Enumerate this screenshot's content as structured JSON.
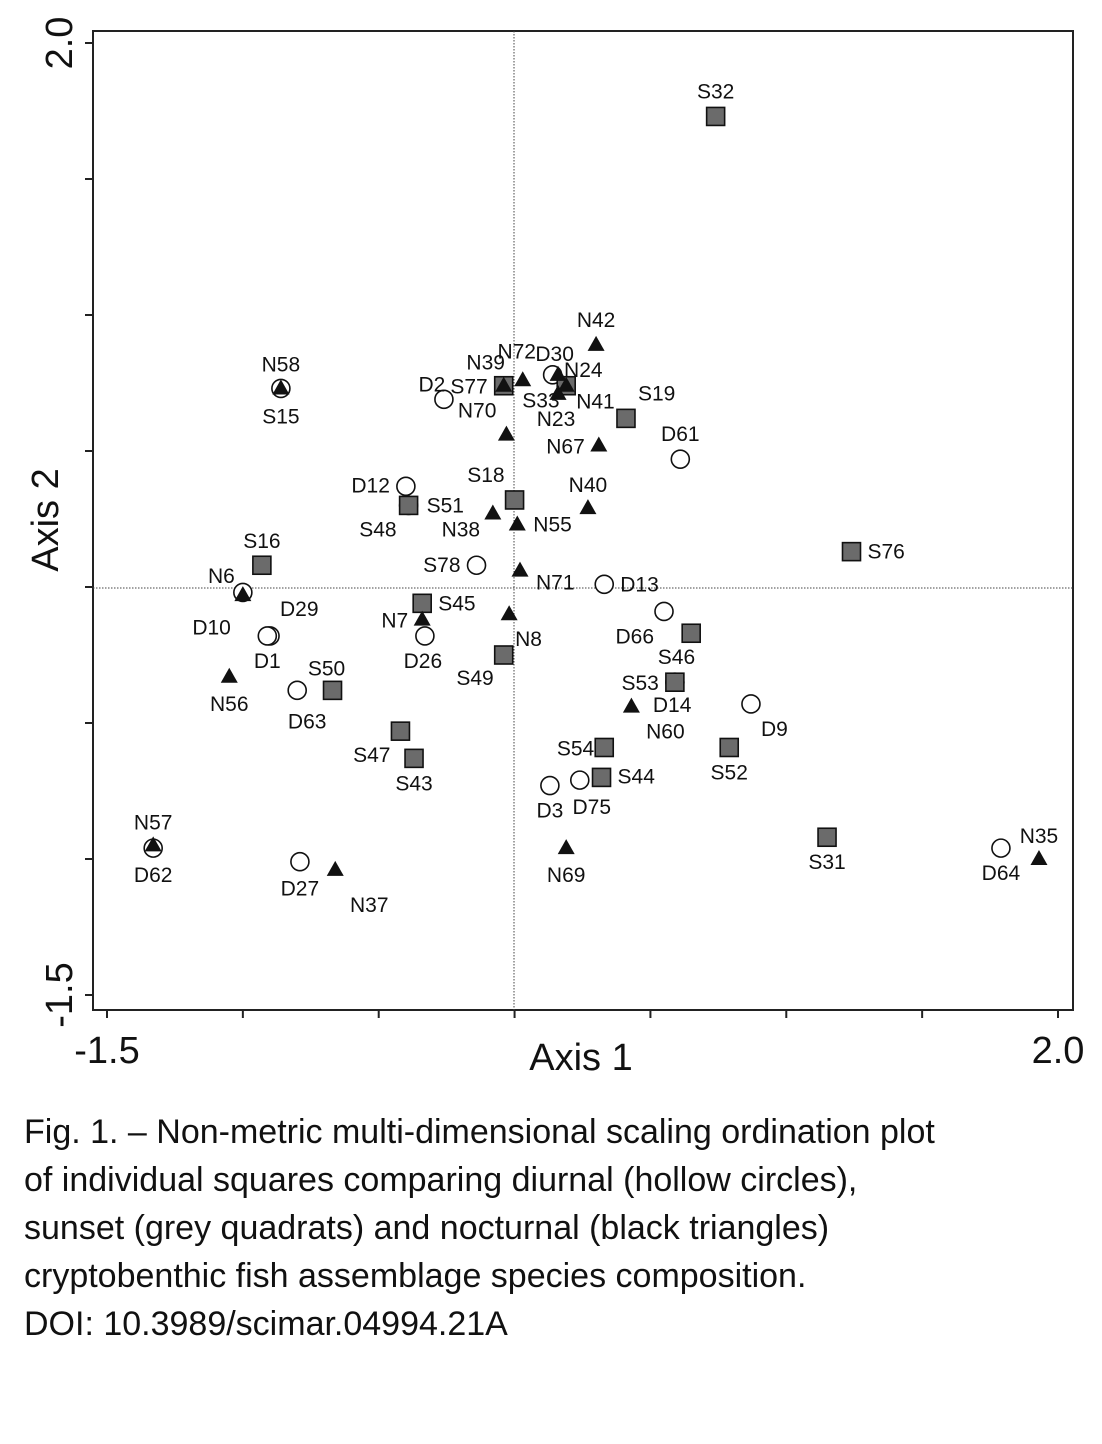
{
  "chart_data": {
    "type": "scatter",
    "title": "",
    "xlabel": "Axis 1",
    "ylabel": "Axis 2",
    "xlim": [
      -1.5,
      2.0
    ],
    "ylim": [
      -1.5,
      2.0
    ],
    "x_tick_labels": [
      {
        "value": -1.5,
        "label": "-1.5"
      },
      {
        "value": 2.0,
        "label": "2.0"
      }
    ],
    "y_tick_labels": [
      {
        "value": 2.0,
        "label": "2.0"
      },
      {
        "value": -1.5,
        "label": "-1.5"
      }
    ],
    "x_ticks": [
      -1.5,
      -1.0,
      -0.5,
      0.0,
      0.5,
      1.0,
      1.5,
      2.0
    ],
    "y_ticks": [
      -1.5,
      -1.0,
      -0.5,
      0.0,
      0.5,
      1.0,
      1.5,
      2.0
    ],
    "reference_lines": {
      "x": 0,
      "y": 0
    },
    "grid": false,
    "legend": "none",
    "colors": {
      "diurnal": "#ffffff",
      "sunset": "#6b6b6b",
      "nocturnal": "#111111"
    },
    "series": [
      {
        "marker": "circle",
        "points": [
          {
            "label": "D2",
            "x": -0.26,
            "y": 0.69
          },
          {
            "label": "D30",
            "x": 0.14,
            "y": 0.78
          },
          {
            "label": "D61",
            "x": 0.61,
            "y": 0.47
          },
          {
            "label": "D12",
            "x": -0.4,
            "y": 0.37
          },
          {
            "label": "D13",
            "x": 0.33,
            "y": 0.01
          },
          {
            "label": "D10",
            "x": -1.0,
            "y": -0.02
          },
          {
            "label": "D29",
            "x": -0.9,
            "y": -0.18
          },
          {
            "label": "D1",
            "x": -0.91,
            "y": -0.18
          },
          {
            "label": "D26",
            "x": -0.33,
            "y": -0.18
          },
          {
            "label": "D66",
            "x": 0.55,
            "y": -0.09
          },
          {
            "label": "D63",
            "x": -0.8,
            "y": -0.38
          },
          {
            "label": "D14",
            "x": 0.59,
            "y": -0.35
          },
          {
            "label": "D9",
            "x": 0.87,
            "y": -0.43
          },
          {
            "label": "D3",
            "x": 0.13,
            "y": -0.73
          },
          {
            "label": "D75",
            "x": 0.24,
            "y": -0.71
          },
          {
            "label": "D62",
            "x": -1.33,
            "y": -0.96
          },
          {
            "label": "D27",
            "x": -0.79,
            "y": -1.01
          },
          {
            "label": "D64",
            "x": 1.79,
            "y": -0.96
          },
          {
            "label": "S15",
            "x": -0.86,
            "y": 0.73
          },
          {
            "label": "S48",
            "x": -0.39,
            "y": 0.3
          },
          {
            "label": "S78",
            "x": -0.14,
            "y": 0.08
          }
        ]
      },
      {
        "marker": "square",
        "points": [
          {
            "label": "S32",
            "x": 0.74,
            "y": 1.73
          },
          {
            "label": "S77",
            "x": -0.04,
            "y": 0.74
          },
          {
            "label": "S33",
            "x": 0.19,
            "y": 0.74
          },
          {
            "label": "S19",
            "x": 0.41,
            "y": 0.62
          },
          {
            "label": "S18",
            "x": 0.0,
            "y": 0.32
          },
          {
            "label": "S51",
            "x": -0.39,
            "y": 0.3
          },
          {
            "label": "S76",
            "x": 1.24,
            "y": 0.13
          },
          {
            "label": "S16",
            "x": -0.93,
            "y": 0.08
          },
          {
            "label": "S45",
            "x": -0.34,
            "y": -0.06
          },
          {
            "label": "S46",
            "x": 0.65,
            "y": -0.17
          },
          {
            "label": "S49",
            "x": -0.04,
            "y": -0.25
          },
          {
            "label": "S53",
            "x": 0.59,
            "y": -0.35
          },
          {
            "label": "S50",
            "x": -0.67,
            "y": -0.38
          },
          {
            "label": "S47",
            "x": -0.42,
            "y": -0.53
          },
          {
            "label": "S43",
            "x": -0.37,
            "y": -0.63
          },
          {
            "label": "S54",
            "x": 0.33,
            "y": -0.59
          },
          {
            "label": "S44",
            "x": 0.32,
            "y": -0.7
          },
          {
            "label": "S52",
            "x": 0.79,
            "y": -0.59
          },
          {
            "label": "S31",
            "x": 1.15,
            "y": -0.92
          }
        ]
      },
      {
        "marker": "triangle",
        "points": [
          {
            "label": "N42",
            "x": 0.3,
            "y": 0.89
          },
          {
            "label": "N72",
            "x": 0.03,
            "y": 0.76
          },
          {
            "label": "N39",
            "x": -0.04,
            "y": 0.74
          },
          {
            "label": "N24",
            "x": 0.16,
            "y": 0.78
          },
          {
            "label": "N23",
            "x": 0.16,
            "y": 0.71
          },
          {
            "label": "N70",
            "x": -0.03,
            "y": 0.56
          },
          {
            "label": "N67",
            "x": 0.31,
            "y": 0.52
          },
          {
            "label": "N58",
            "x": -0.86,
            "y": 0.73
          },
          {
            "label": "N40",
            "x": 0.27,
            "y": 0.29
          },
          {
            "label": "N55",
            "x": 0.01,
            "y": 0.23
          },
          {
            "label": "N38",
            "x": -0.08,
            "y": 0.27
          },
          {
            "label": "N71",
            "x": 0.02,
            "y": 0.06
          },
          {
            "label": "N6",
            "x": -1.0,
            "y": -0.03
          },
          {
            "label": "N7",
            "x": -0.34,
            "y": -0.12
          },
          {
            "label": "N8",
            "x": -0.02,
            "y": -0.1
          },
          {
            "label": "N56",
            "x": -1.05,
            "y": -0.33
          },
          {
            "label": "N60",
            "x": 0.43,
            "y": -0.44
          },
          {
            "label": "N57",
            "x": -1.33,
            "y": -0.95
          },
          {
            "label": "N37",
            "x": -0.66,
            "y": -1.04
          },
          {
            "label": "N69",
            "x": 0.19,
            "y": -0.96
          },
          {
            "label": "N35",
            "x": 1.93,
            "y": -1.0
          },
          {
            "label": "N41",
            "x": 0.19,
            "y": 0.74
          }
        ]
      }
    ]
  },
  "caption": {
    "lines": [
      "Fig. 1. – Non-metric multi-dimensional scaling ordination plot",
      "of individual squares comparing diurnal (hollow circles),",
      "sunset (grey quadrats) and nocturnal (black triangles)",
      "cryptobenthic fish assemblage species composition.",
      "DOI: 10.3989/scimar.04994.21A"
    ]
  }
}
